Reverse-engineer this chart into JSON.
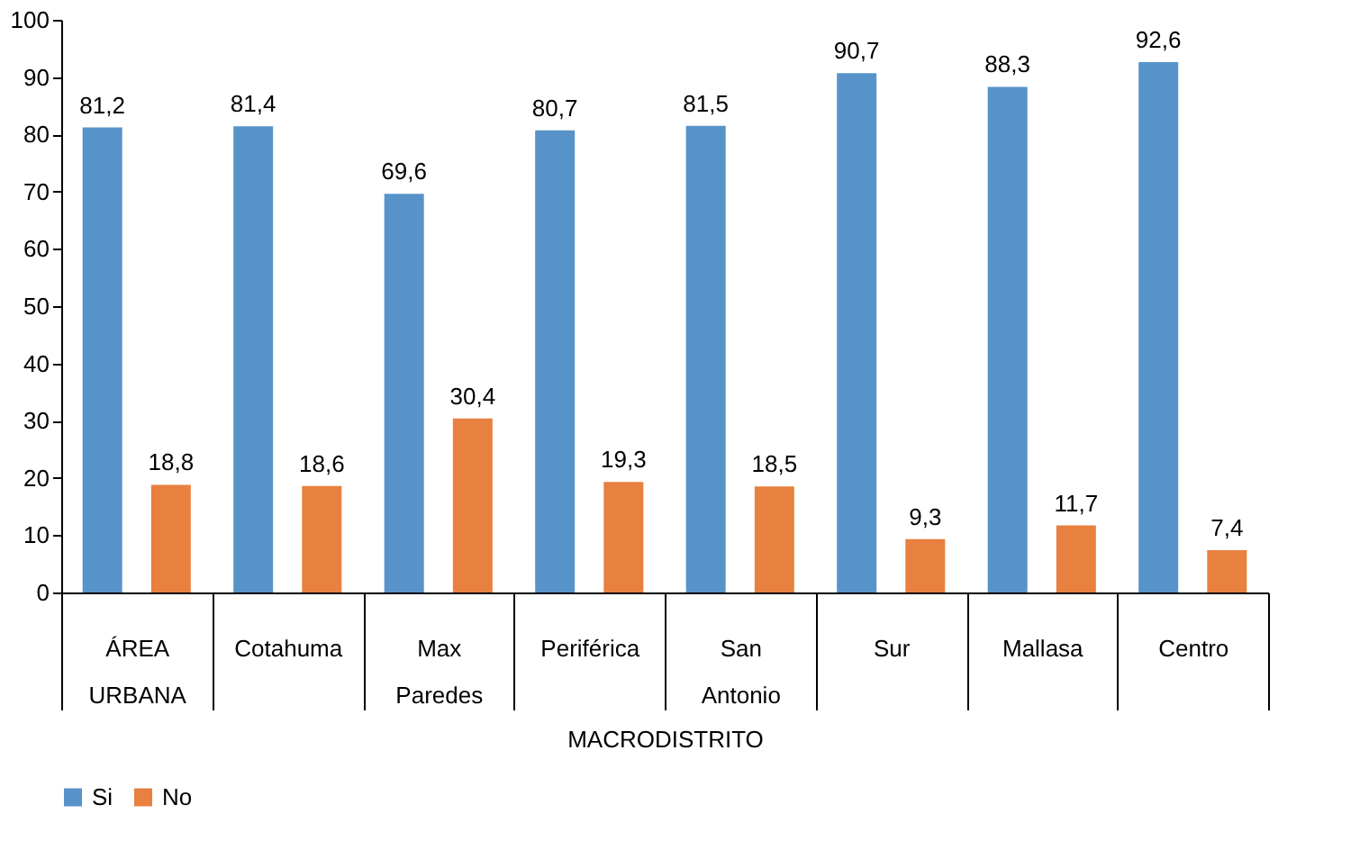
{
  "chart_data": {
    "type": "bar",
    "xlabel": "MACRODISTRITO",
    "categories": [
      "ÁREA URBANA",
      "Cotahuma",
      "Max Paredes",
      "Periférica",
      "San Antonio",
      "Sur",
      "Mallasa",
      "Centro"
    ],
    "series": [
      {
        "name": "Si",
        "color": "#5793c8",
        "values": [
          81.2,
          81.4,
          69.6,
          80.7,
          81.5,
          90.7,
          88.3,
          92.6
        ],
        "value_labels": [
          "81,2",
          "81,4",
          "69,6",
          "80,7",
          "81,5",
          "90,7",
          "88,3",
          "92,6"
        ]
      },
      {
        "name": "No",
        "color": "#e8803f",
        "values": [
          18.8,
          18.6,
          30.4,
          19.3,
          18.5,
          9.3,
          11.7,
          7.4
        ],
        "value_labels": [
          "18,8",
          "18,6",
          "30,4",
          "19,3",
          "18,5",
          "9,3",
          "11,7",
          "7,4"
        ]
      }
    ],
    "ylim": [
      0,
      100
    ],
    "yticks": [
      0,
      10,
      20,
      30,
      40,
      50,
      60,
      70,
      80,
      90,
      100
    ],
    "grid": false,
    "legend": "bottom"
  }
}
